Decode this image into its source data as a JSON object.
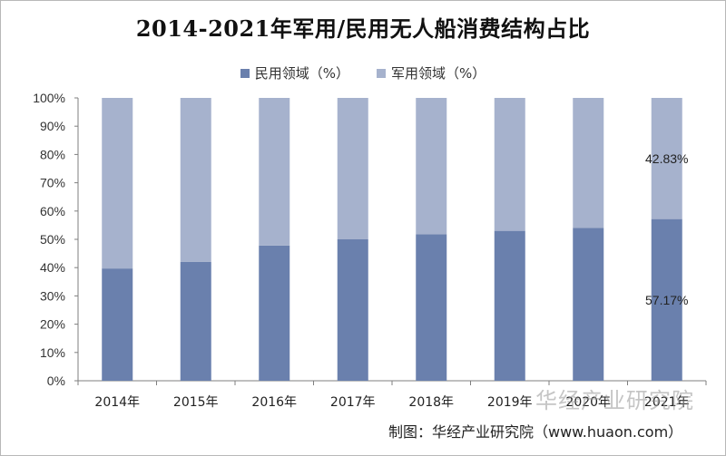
{
  "title": "2014-2021年军用/民用无人船消费结构占比",
  "legend": {
    "civil_label": "民用领域（%）",
    "military_label": "军用领域（%）"
  },
  "colors": {
    "civil": "#6a80ad",
    "military": "#a6b2cd"
  },
  "chart_data": {
    "type": "bar",
    "stacked": true,
    "categories": [
      "2014年",
      "2015年",
      "2016年",
      "2017年",
      "2018年",
      "2019年",
      "2020年",
      "2021年"
    ],
    "series": [
      {
        "name": "民用领域（%）",
        "values": [
          39.7,
          42.0,
          47.8,
          50.0,
          51.8,
          53.0,
          54.0,
          57.17
        ]
      },
      {
        "name": "军用领域（%）",
        "values": [
          60.3,
          58.0,
          52.2,
          50.0,
          48.2,
          47.0,
          46.0,
          42.83
        ]
      }
    ],
    "yticks": [
      "0%",
      "10%",
      "20%",
      "30%",
      "40%",
      "50%",
      "60%",
      "70%",
      "80%",
      "90%",
      "100%"
    ],
    "ylim": [
      0,
      100
    ],
    "grid": false,
    "legend_position": "top",
    "annotations": [
      {
        "category": "2021年",
        "series": "军用领域（%）",
        "text": "42.83%"
      },
      {
        "category": "2021年",
        "series": "民用领域（%）",
        "text": "57.17%"
      }
    ]
  },
  "watermark": "华经产业研究院",
  "source": "制图：华经产业研究院（www.huaon.com）"
}
